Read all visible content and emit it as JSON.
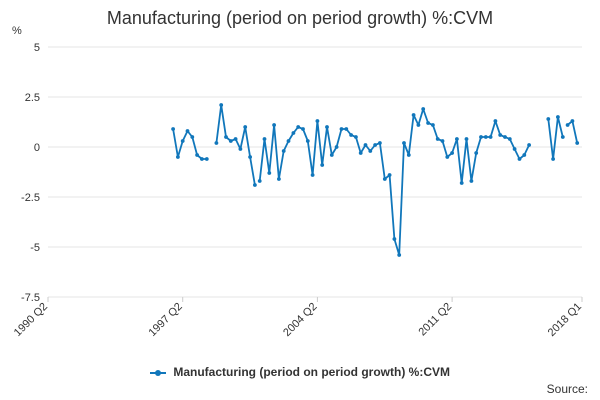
{
  "colors": {
    "series": "#1177bb",
    "grid": "#e6e6e6",
    "axis": "#cccccc",
    "text": "#333333"
  },
  "source_label": "Source:",
  "chart_data": {
    "type": "line",
    "title": "Manufacturing (period on period growth) %:CVM",
    "ylabel": "%",
    "xlabel": "",
    "ylim": [
      -7.5,
      5
    ],
    "yticks": [
      5,
      2.5,
      0,
      -2.5,
      -5,
      -7.5
    ],
    "ytick_labels": [
      "5",
      "2.5",
      "0",
      "-2.5",
      "-5",
      "-7.5"
    ],
    "xrange": [
      1990.25,
      2018.0
    ],
    "xticks": [
      1990.25,
      1997.25,
      2004.25,
      2011.25,
      2018.0
    ],
    "xtick_labels": [
      "1990 Q2",
      "1997 Q2",
      "2004 Q2",
      "2011 Q2",
      "2018 Q1"
    ],
    "grid": true,
    "legend_position": "bottom",
    "series": [
      {
        "name": "Manufacturing (period on period growth) %:CVM",
        "segments": [
          {
            "start": [
              1996,
              4
            ],
            "values": [
              0.9,
              -0.5,
              0.3,
              0.8,
              0.5,
              -0.4,
              -0.6,
              -0.6
            ]
          },
          {
            "start": [
              1999,
              1
            ],
            "values": [
              0.2,
              2.1,
              0.5,
              0.3,
              0.4,
              -0.1,
              1.0,
              -0.5,
              -1.9
            ]
          },
          {
            "start": [
              2001,
              2
            ],
            "values": [
              -1.7,
              0.4,
              -1.3,
              1.1,
              -1.6,
              -0.2,
              0.3,
              0.7,
              1.0,
              0.9,
              0.3,
              -1.4,
              1.3,
              -0.9,
              1.0,
              -0.4,
              0.0,
              0.9,
              0.9,
              0.6,
              0.5,
              -0.3,
              0.1,
              -0.2,
              0.1,
              0.2,
              -1.6,
              -1.4,
              -4.6,
              -5.4,
              0.2,
              -0.4,
              1.6,
              1.1,
              1.9,
              1.2,
              1.1,
              0.4,
              0.3,
              -0.5,
              -0.3,
              0.4,
              -1.8,
              0.4,
              -1.7,
              -0.3,
              0.5,
              0.5,
              0.5,
              1.3,
              0.6,
              0.5,
              0.4,
              -0.1,
              -0.6,
              -0.4,
              0.1
            ]
          },
          {
            "start": [
              2016,
              2
            ],
            "values": [
              1.4,
              -0.6,
              1.5,
              0.5
            ]
          },
          {
            "start": [
              2017,
              2
            ],
            "values": [
              1.1,
              1.3,
              0.2
            ]
          }
        ]
      }
    ]
  }
}
